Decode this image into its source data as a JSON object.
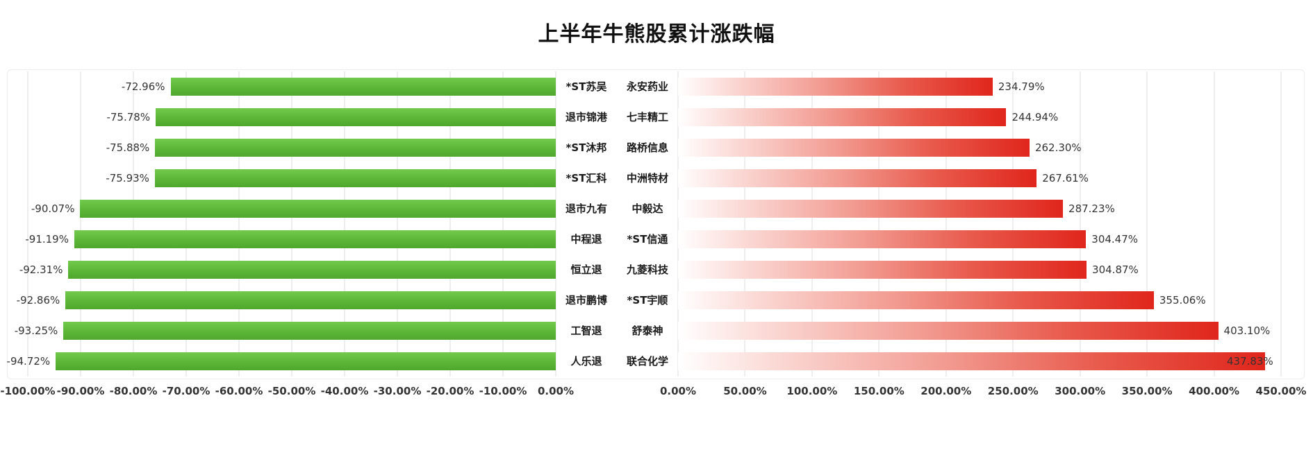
{
  "title": "上半年牛熊股累计涨跌幅",
  "chart_data": [
    {
      "type": "bar",
      "orientation": "horizontal",
      "series_name": "bear-stocks",
      "categories": [
        "*ST苏吴",
        "退市锦港",
        "*ST沐邦",
        "*ST汇科",
        "退市九有",
        "中程退",
        "恒立退",
        "退市鹏博",
        "工智退",
        "人乐退"
      ],
      "values": [
        -72.96,
        -75.78,
        -75.88,
        -75.93,
        -90.07,
        -91.19,
        -92.31,
        -92.86,
        -93.25,
        -94.72
      ],
      "value_labels": [
        "-72.96%",
        "-75.78%",
        "-75.88%",
        "-75.93%",
        "-90.07%",
        "-91.19%",
        "-92.31%",
        "-92.86%",
        "-93.25%",
        "-94.72%"
      ],
      "xlim": [
        -100,
        0
      ],
      "tick_step": 10,
      "tick_labels": [
        "-100.00%",
        "-90.00%",
        "-80.00%",
        "-70.00%",
        "-60.00%",
        "-50.00%",
        "-40.00%",
        "-30.00%",
        "-20.00%",
        "-10.00%",
        "0.00%"
      ],
      "bar_color": "#55b02e",
      "bar_color_light": "#74ca4e",
      "grid": true,
      "grid_color": "#dcdcdc",
      "bars_anchored_to": "right"
    },
    {
      "type": "bar",
      "orientation": "horizontal",
      "series_name": "bull-stocks",
      "categories": [
        "永安药业",
        "七丰精工",
        "路桥信息",
        "中洲特材",
        "中毅达",
        "*ST信通",
        "九菱科技",
        "*ST宇顺",
        "舒泰神",
        "联合化学"
      ],
      "values": [
        234.79,
        244.94,
        262.3,
        267.61,
        287.23,
        304.47,
        304.87,
        355.06,
        403.1,
        437.83
      ],
      "value_labels": [
        "234.79%",
        "244.94%",
        "262.30%",
        "267.61%",
        "287.23%",
        "304.47%",
        "304.87%",
        "355.06%",
        "403.10%",
        "437.83%"
      ],
      "xlim": [
        0,
        450
      ],
      "tick_step": 50,
      "tick_labels": [
        "0.00%",
        "50.00%",
        "100.00%",
        "150.00%",
        "200.00%",
        "250.00%",
        "300.00%",
        "350.00%",
        "400.00%",
        "450.00%"
      ],
      "bar_color": "#e0261c",
      "bar_color_light": "#ffffff",
      "grid": true,
      "grid_color": "#dcdcdc",
      "bars_anchored_to": "left"
    }
  ]
}
